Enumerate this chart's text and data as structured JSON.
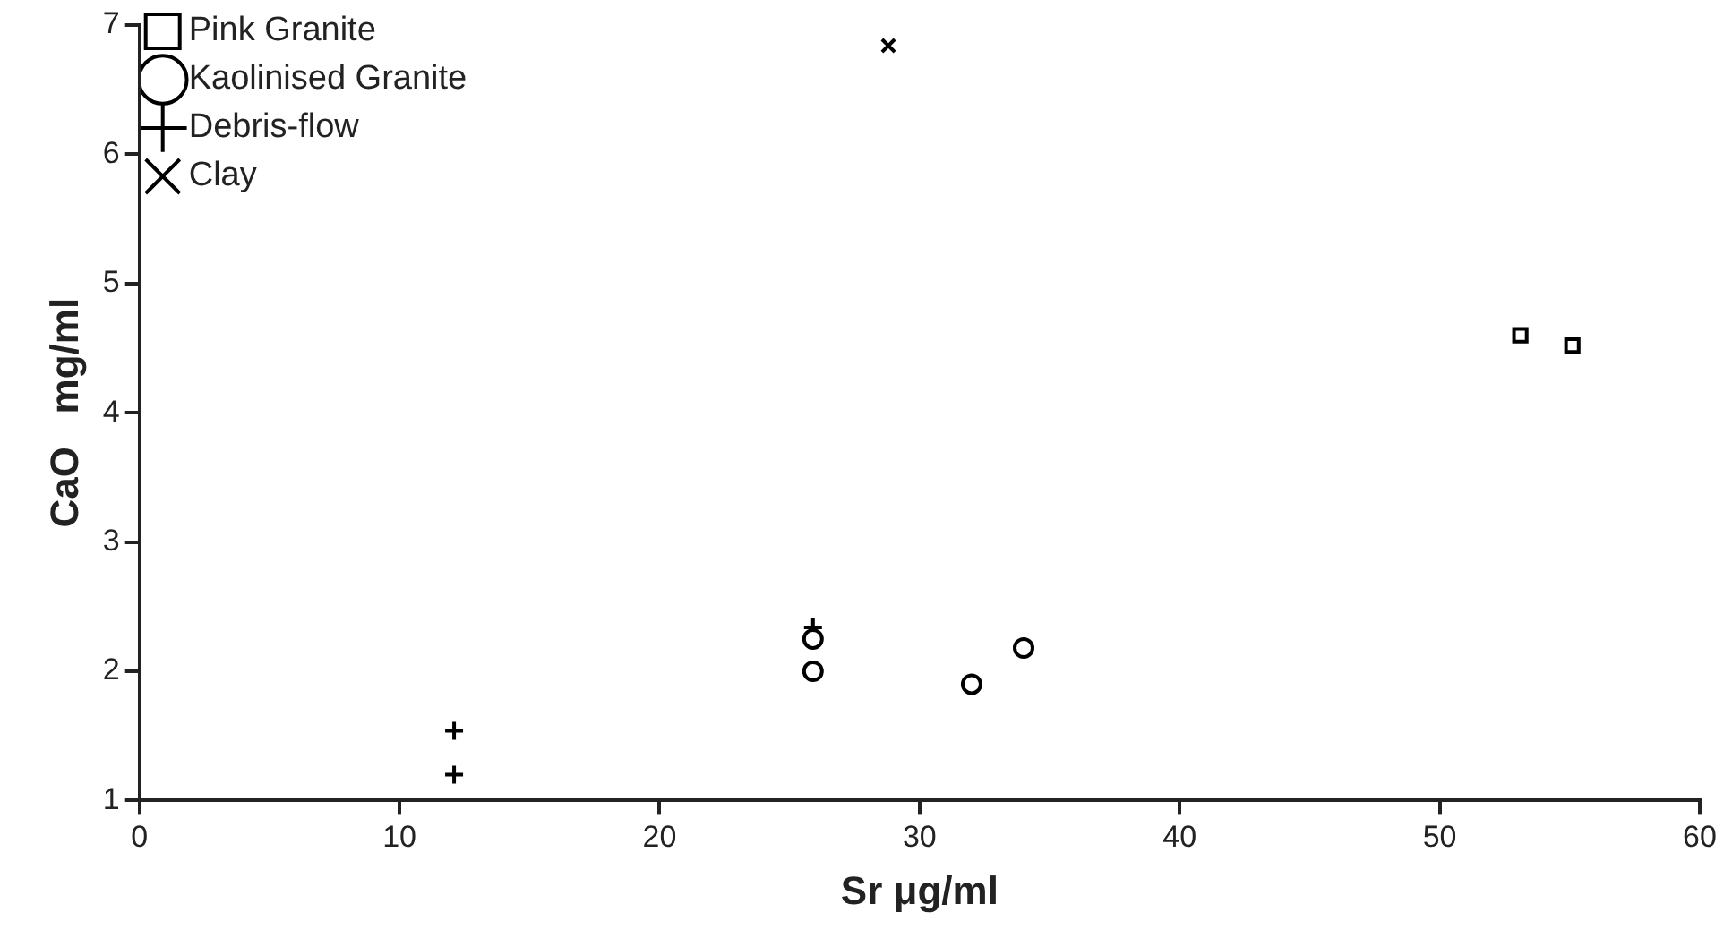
{
  "chart_data": {
    "type": "scatter",
    "xlabel": "Sr μg/ml",
    "ylabel": "CaO   mg/ml",
    "xlim": [
      0,
      60
    ],
    "ylim": [
      1,
      7
    ],
    "xticks": [
      0,
      10,
      20,
      30,
      40,
      50,
      60
    ],
    "yticks": [
      1,
      2,
      3,
      4,
      5,
      6,
      7
    ],
    "grid": false,
    "legend": "top left",
    "series": [
      {
        "name": "Pink Granite",
        "color": "#000000",
        "marker": "square",
        "x": [
          53.1,
          55.1
        ],
        "values": [
          4.6,
          4.52
        ]
      },
      {
        "name": "Kaolinised Granite",
        "color": "#000000",
        "marker": "circle",
        "x": [
          25.9,
          25.9,
          32,
          34
        ],
        "values": [
          2.0,
          2.25,
          1.9,
          2.18
        ]
      },
      {
        "name": "Debris-flow",
        "color": "#000000",
        "marker": "cross",
        "x": [
          12.1,
          12.1,
          25.9
        ],
        "values": [
          1.54,
          1.2,
          2.34
        ]
      },
      {
        "name": "Clay",
        "color": "#000000",
        "marker": "x",
        "x": [
          28.8
        ],
        "values": [
          6.84
        ]
      }
    ]
  }
}
